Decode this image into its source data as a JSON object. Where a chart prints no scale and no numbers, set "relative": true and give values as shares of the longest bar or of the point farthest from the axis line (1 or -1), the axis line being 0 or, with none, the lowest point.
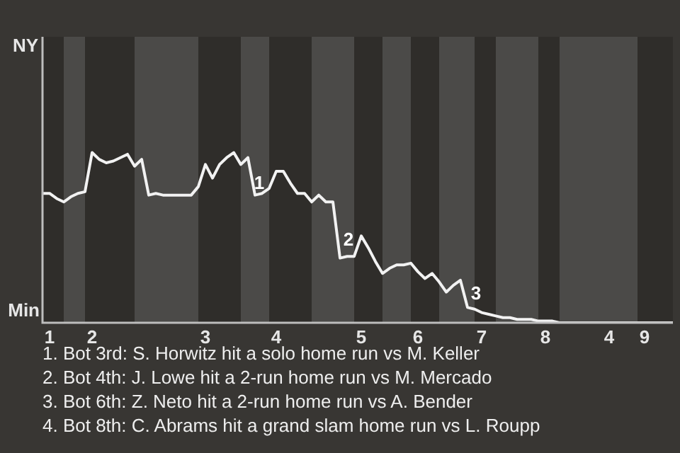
{
  "chart_data": {
    "type": "line",
    "categories": [
      null,
      "1",
      null,
      null,
      null,
      null,
      null,
      "2",
      null,
      null,
      null,
      null,
      null,
      null,
      null,
      null,
      null,
      null,
      null,
      null,
      null,
      null,
      null,
      "3",
      null,
      null,
      null,
      null,
      null,
      null,
      null,
      null,
      null,
      "4",
      null,
      null,
      null,
      null,
      null,
      null,
      null,
      null,
      null,
      null,
      null,
      "5",
      null,
      null,
      null,
      null,
      null,
      null,
      null,
      "6",
      null,
      null,
      null,
      null,
      null,
      null,
      null,
      null,
      "7",
      null,
      null,
      null,
      null,
      null,
      null,
      null,
      null,
      "8",
      null,
      null,
      null,
      null,
      null,
      null,
      null,
      null,
      "4",
      null,
      null,
      null,
      null,
      "9",
      null,
      null,
      null,
      null
    ],
    "values": [
      0.76,
      0.76,
      0.73,
      0.71,
      0.74,
      0.76,
      0.77,
      1,
      0.96,
      0.94,
      0.95,
      0.97,
      0.99,
      0.92,
      0.96,
      0.75,
      0.76,
      0.75,
      0.75,
      0.75,
      0.75,
      0.75,
      0.8,
      0.93,
      0.85,
      0.93,
      0.97,
      1,
      0.93,
      0.97,
      0.75,
      0.76,
      0.79,
      0.89,
      0.89,
      0.82,
      0.76,
      0.76,
      0.71,
      0.75,
      0.71,
      0.71,
      0.38,
      0.39,
      0.39,
      0.51,
      0.44,
      0.36,
      0.29,
      0.32,
      0.34,
      0.34,
      0.35,
      0.3,
      0.26,
      0.29,
      0.24,
      0.18,
      0.22,
      0.25,
      0.09,
      0.08,
      0.06,
      0.05,
      0.04,
      0.03,
      0.03,
      0.02,
      0.02,
      0.02,
      0.01,
      0.01,
      0.01,
      0,
      0,
      0,
      0,
      0,
      0,
      0,
      0,
      0,
      0,
      0,
      0,
      0,
      0,
      0,
      0,
      0
    ],
    "color": "#f2f2f2",
    "relative": true,
    "legend": false,
    "marker": "none",
    "line_style": "solid",
    "annotations": [
      "1",
      "2",
      "3",
      "NY",
      "Min",
      "1. Bot 3rd: S. Horwitz hit a solo home run vs M. Keller",
      "2. Bot 4th: J. Lowe hit a 2-run home run vs M. Mercado",
      "3. Bot 6th: Z. Neto hit a 2-run home run vs A. Bender",
      "4. Bot 8th: C. Abrams hit a grand slam home run vs L. Roupp"
    ]
  }
}
